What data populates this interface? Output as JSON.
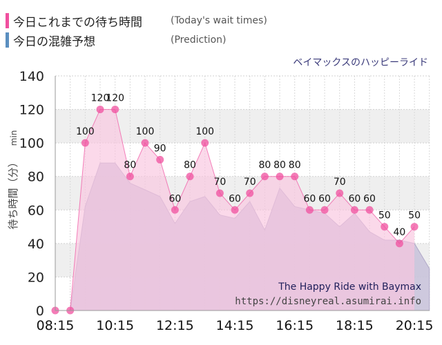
{
  "legend": {
    "actual_label": "今日これまでの待ち時間",
    "actual_sub": "(Today's wait times)",
    "predict_label": "今日の混雑予想",
    "predict_sub": "(Prediction)"
  },
  "ride_name": "ベイマックスのハッピーライド",
  "watermark": {
    "title": "The Happy Ride with Baymax",
    "url": "https://disneyreal.asumirai.info"
  },
  "colors": {
    "actual": "#f0509f",
    "actual_fill": "#f9c5df",
    "prediction": "#5b8fc0",
    "prediction_fill": "#c9c3da",
    "band": "#efefef"
  },
  "chart_data": {
    "type": "area",
    "ylabel_main": "待ち時間（分）",
    "ylabel_unit": "min",
    "ylim": [
      0,
      140
    ],
    "yticks": [
      0,
      20,
      40,
      60,
      80,
      100,
      120,
      140
    ],
    "xlabel_ticks": [
      "08:15",
      "10:15",
      "12:15",
      "14:15",
      "16:15",
      "18:15",
      "20:15"
    ],
    "x_start": "08:15",
    "x_step_minutes": 30,
    "series": [
      {
        "name": "今日これまでの待ち時間",
        "x": [
          "08:15",
          "08:45",
          "09:15",
          "09:45",
          "10:15",
          "10:45",
          "11:15",
          "11:45",
          "12:15",
          "12:45",
          "13:15",
          "13:45",
          "14:15",
          "14:45",
          "15:15",
          "15:45",
          "16:15",
          "16:45",
          "17:15",
          "17:45",
          "18:15",
          "18:45",
          "19:15",
          "19:45",
          "20:15"
        ],
        "values": [
          0,
          0,
          100,
          120,
          120,
          80,
          100,
          90,
          60,
          80,
          100,
          70,
          60,
          70,
          80,
          80,
          80,
          60,
          60,
          70,
          60,
          60,
          50,
          40,
          50
        ],
        "labels": [
          "",
          "",
          "100",
          "120",
          "120",
          "80",
          "100",
          "90",
          "60",
          "80",
          "100",
          "70",
          "60",
          "70",
          "80",
          "80",
          "80",
          "60",
          "60",
          "70",
          "60",
          "60",
          "50",
          "40",
          "50"
        ]
      },
      {
        "name": "今日の混雑予想",
        "x": [
          "08:15",
          "08:45",
          "09:15",
          "09:45",
          "10:15",
          "10:45",
          "11:15",
          "11:45",
          "12:15",
          "12:45",
          "13:15",
          "13:45",
          "14:15",
          "14:45",
          "15:15",
          "15:45",
          "16:15",
          "16:45",
          "17:15",
          "17:45",
          "18:15",
          "18:45",
          "19:15",
          "19:45",
          "20:15",
          "20:45"
        ],
        "values": [
          0,
          0,
          62,
          88,
          88,
          76,
          72,
          68,
          52,
          65,
          68,
          57,
          55,
          65,
          48,
          73,
          62,
          60,
          58,
          50,
          58,
          47,
          42,
          42,
          40,
          25
        ]
      }
    ]
  }
}
